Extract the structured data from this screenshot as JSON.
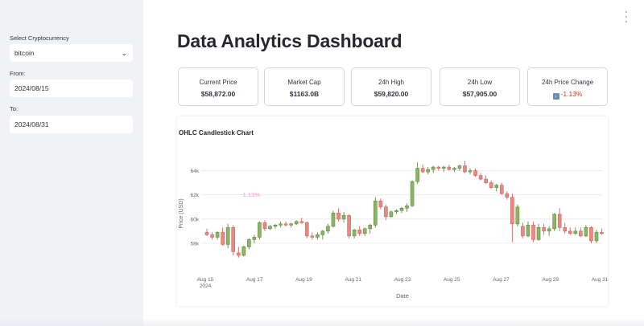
{
  "sidebar": {
    "crypto_label": "Select Cryptocurrency",
    "crypto_value": "bitcoin",
    "from_label": "From:",
    "from_value": "2024/08/15",
    "to_label": "To:",
    "to_value": "2024/08/31"
  },
  "header": {
    "title": "Data Analytics Dashboard",
    "menu_icon": "vertical-dots-icon"
  },
  "metrics": [
    {
      "label": "Current Price",
      "value": "$58,872.00"
    },
    {
      "label": "Market Cap",
      "value": "$1163.0B"
    },
    {
      "label": "24h High",
      "value": "$59,820.00"
    },
    {
      "label": "24h Low",
      "value": "$57,905.00"
    },
    {
      "label": "24h Price Change",
      "value": "-1.13%",
      "icon": "down-arrow-icon"
    }
  ],
  "colors": {
    "increasing": "#5f8a3a",
    "decreasing": "#d9605a",
    "sidebar_bg": "#f0f2f6",
    "negative_text": "#c0392b"
  },
  "chart_data": {
    "type": "candlestick",
    "title": "OHLC Candlestick Chart",
    "xlabel": "Date",
    "ylabel": "Price (USD)",
    "ylim": [
      56200,
      65500
    ],
    "yticks": [
      58000,
      60000,
      62000,
      64000
    ],
    "ytick_labels": [
      "58k",
      "60k",
      "62k",
      "64k"
    ],
    "xticks": [
      "Aug 15\n2024",
      "Aug 17",
      "Aug 19",
      "Aug 21",
      "Aug 23",
      "Aug 25",
      "Aug 27",
      "Aug 29",
      "Aug 31"
    ],
    "annotation": "-1.13%",
    "candles": [
      [
        58900,
        59200,
        58600,
        58700
      ],
      [
        58700,
        58900,
        58300,
        58500
      ],
      [
        58500,
        59000,
        58300,
        58900
      ],
      [
        58900,
        59300,
        57800,
        57900
      ],
      [
        57900,
        59600,
        57600,
        59300
      ],
      [
        59300,
        59500,
        57000,
        57300
      ],
      [
        57200,
        57700,
        56800,
        57000
      ],
      [
        57000,
        57800,
        56900,
        57700
      ],
      [
        57700,
        58400,
        57500,
        58300
      ],
      [
        58300,
        58700,
        58000,
        58500
      ],
      [
        58500,
        59800,
        58300,
        59700
      ],
      [
        59700,
        59900,
        59000,
        59200
      ],
      [
        59200,
        59500,
        59100,
        59400
      ],
      [
        59400,
        59600,
        59200,
        59500
      ],
      [
        59500,
        59800,
        59300,
        59600
      ],
      [
        59600,
        59800,
        59400,
        59500
      ],
      [
        59500,
        59700,
        59300,
        59600
      ],
      [
        59600,
        59900,
        59500,
        59800
      ],
      [
        59800,
        60100,
        59600,
        59700
      ],
      [
        59700,
        59800,
        58400,
        58600
      ],
      [
        58600,
        58900,
        58300,
        58500
      ],
      [
        58500,
        58900,
        58300,
        58700
      ],
      [
        58700,
        59100,
        58300,
        59000
      ],
      [
        59000,
        59600,
        58800,
        59400
      ],
      [
        59400,
        60700,
        59300,
        60500
      ],
      [
        60500,
        60900,
        59800,
        60000
      ],
      [
        60000,
        60600,
        59700,
        60300
      ],
      [
        60300,
        60400,
        58400,
        58600
      ],
      [
        58600,
        59200,
        58400,
        59100
      ],
      [
        59100,
        59400,
        58600,
        58800
      ],
      [
        58800,
        59300,
        58600,
        59200
      ],
      [
        59200,
        59600,
        58800,
        59500
      ],
      [
        59500,
        61800,
        59300,
        61500
      ],
      [
        61500,
        61700,
        60800,
        61000
      ],
      [
        61000,
        61200,
        59900,
        60200
      ],
      [
        60200,
        60700,
        60100,
        60600
      ],
      [
        60600,
        60800,
        60400,
        60700
      ],
      [
        60700,
        61000,
        60500,
        60900
      ],
      [
        60900,
        61300,
        60600,
        61100
      ],
      [
        61100,
        63200,
        61000,
        63100
      ],
      [
        63100,
        64700,
        62900,
        64200
      ],
      [
        64200,
        64500,
        63800,
        63900
      ],
      [
        63900,
        64300,
        63700,
        64100
      ],
      [
        64100,
        64400,
        63800,
        64300
      ],
      [
        64300,
        64400,
        64000,
        64200
      ],
      [
        64200,
        64400,
        63900,
        64300
      ],
      [
        64300,
        64500,
        64000,
        64100
      ],
      [
        64100,
        64300,
        63900,
        64200
      ],
      [
        64200,
        64500,
        64000,
        64400
      ],
      [
        64400,
        64800,
        63800,
        63900
      ],
      [
        63900,
        64200,
        63700,
        64000
      ],
      [
        64000,
        64200,
        63500,
        63600
      ],
      [
        63600,
        63800,
        63200,
        63300
      ],
      [
        63300,
        63600,
        62900,
        63000
      ],
      [
        63000,
        63200,
        62500,
        62600
      ],
      [
        62600,
        62900,
        62300,
        62800
      ],
      [
        62800,
        63000,
        62000,
        62100
      ],
      [
        62100,
        62300,
        61600,
        61800
      ],
      [
        61800,
        62100,
        58100,
        59600
      ],
      [
        59600,
        61200,
        59400,
        61000
      ],
      [
        59400,
        59700,
        58400,
        58600
      ],
      [
        58600,
        59800,
        58500,
        59500
      ],
      [
        59500,
        59800,
        58100,
        58300
      ],
      [
        58300,
        59600,
        58200,
        59300
      ],
      [
        59300,
        59600,
        58700,
        59000
      ],
      [
        59000,
        59400,
        58600,
        59200
      ],
      [
        59200,
        60500,
        59000,
        60400
      ],
      [
        60400,
        60900,
        59000,
        59300
      ],
      [
        59300,
        59700,
        58800,
        59000
      ],
      [
        59000,
        59300,
        58700,
        58800
      ],
      [
        58800,
        59300,
        58700,
        59000
      ],
      [
        59000,
        59300,
        58500,
        58600
      ],
      [
        58600,
        59500,
        58500,
        59300
      ],
      [
        59300,
        59400,
        58000,
        58200
      ],
      [
        58200,
        59100,
        58000,
        58900
      ],
      [
        58900,
        59200,
        58700,
        58800
      ]
    ]
  }
}
